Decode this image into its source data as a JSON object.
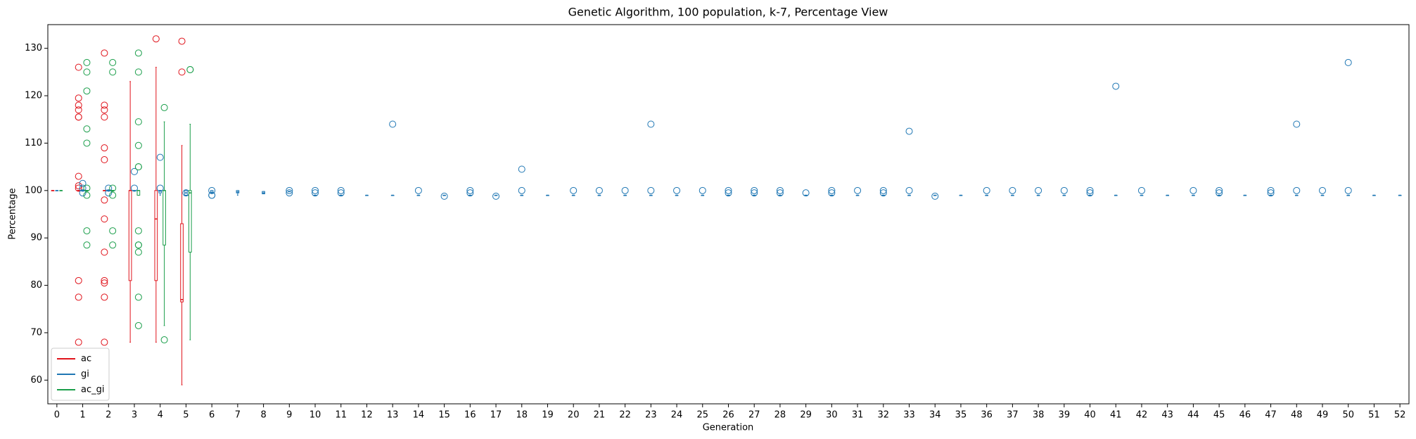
{
  "chart_data": {
    "type": "box",
    "title": "Genetic Algorithm, 100 population, k-7, Percentage View",
    "x_label": "Generation",
    "y_label": "Percentage",
    "categories": [
      "0",
      "1",
      "2",
      "3",
      "4",
      "5",
      "6",
      "7",
      "8",
      "9",
      "10",
      "11",
      "12",
      "13",
      "14",
      "15",
      "16",
      "17",
      "18",
      "19",
      "20",
      "21",
      "22",
      "23",
      "24",
      "25",
      "26",
      "27",
      "28",
      "29",
      "30",
      "31",
      "32",
      "33",
      "34",
      "35",
      "36",
      "37",
      "38",
      "39",
      "40",
      "41",
      "42",
      "43",
      "44",
      "45",
      "46",
      "47",
      "48",
      "49",
      "50",
      "51",
      "52"
    ],
    "ylim": [
      55,
      135
    ],
    "yticks": [
      60,
      70,
      80,
      90,
      100,
      110,
      120,
      130
    ],
    "legend": "lower left",
    "series": [
      {
        "name": "ac",
        "color": "#e0131b",
        "boxes": [
          {
            "box": [
              100,
              100,
              100,
              100,
              100
            ],
            "fliers": []
          },
          {
            "box": [
              100,
              100,
              100,
              100,
              100
            ],
            "fliers": [
              126,
              119.5,
              118,
              117,
              115.5,
              115.5,
              103,
              101,
              100.5,
              81,
              77.5,
              68
            ]
          },
          {
            "box": [
              100,
              100,
              100,
              100,
              100
            ],
            "fliers": [
              129,
              118,
              117,
              115.5,
              109,
              106.5,
              98,
              94,
              87,
              81,
              80.5,
              77.5,
              68
            ]
          },
          {
            "box": [
              68,
              81,
              100,
              100,
              123
            ],
            "fliers": []
          },
          {
            "box": [
              68,
              81,
              94,
              100,
              126
            ],
            "fliers": [
              132
            ]
          },
          {
            "box": [
              59,
              76.5,
              77,
              93,
              109.5
            ],
            "fliers": [
              131.5,
              125
            ]
          },
          null,
          null,
          null,
          null,
          null,
          null,
          null,
          null,
          null,
          null,
          null,
          null,
          null,
          null,
          null,
          null,
          null,
          null,
          null,
          null,
          null,
          null,
          null,
          null,
          null,
          null,
          null,
          null,
          null,
          null,
          null,
          null,
          null,
          null,
          null,
          null,
          null,
          null,
          null,
          null,
          null,
          null,
          null,
          null,
          null,
          null,
          null
        ]
      },
      {
        "name": "gi",
        "color": "#1f77b4",
        "boxes": [
          {
            "box": [
              100,
              100,
              100,
              100,
              100
            ],
            "fliers": []
          },
          {
            "box": [
              100,
              100,
              100,
              100,
              100
            ],
            "fliers": [
              101.5,
              100.5,
              99.5
            ]
          },
          {
            "box": [
              100,
              100,
              100,
              100,
              100
            ],
            "fliers": [
              100.5,
              99.5
            ]
          },
          {
            "box": [
              100,
              100,
              100,
              100,
              100
            ],
            "fliers": [
              104,
              100.5
            ]
          },
          {
            "box": [
              99,
              99.5,
              100,
              100,
              100
            ],
            "fliers": [
              107,
              100.5
            ]
          },
          {
            "box": [
              99,
              99,
              99.5,
              100,
              100
            ],
            "fliers": [
              99.5
            ]
          },
          {
            "box": [
              99.5,
              99.5,
              99.5,
              100,
              100
            ],
            "fliers": [
              100,
              99,
              99
            ]
          },
          {
            "box": [
              99,
              99.5,
              99.7,
              100,
              100
            ],
            "fliers": []
          },
          {
            "box": [
              99.3,
              99.3,
              99.5,
              99.8,
              99.8
            ],
            "fliers": []
          },
          {
            "box": [
              99.8,
              99.8,
              99.8,
              99.8,
              99.8
            ],
            "fliers": [
              100,
              99.5
            ]
          },
          {
            "box": [
              99,
              99,
              99,
              99,
              99
            ],
            "fliers": [
              100,
              99.5
            ]
          },
          {
            "box": [
              99,
              99,
              99,
              99,
              99
            ],
            "fliers": [
              100,
              99.5
            ]
          },
          {
            "box": [
              99,
              99,
              99,
              99,
              99
            ],
            "fliers": []
          },
          {
            "box": [
              99,
              99,
              99,
              99,
              99
            ],
            "fliers": [
              114
            ]
          },
          {
            "box": [
              99,
              99,
              99,
              99,
              99
            ],
            "fliers": [
              100
            ]
          },
          {
            "box": [
              99,
              99,
              99,
              99,
              99
            ],
            "fliers": [
              98.8
            ]
          },
          {
            "box": [
              99,
              99,
              99,
              99,
              99
            ],
            "fliers": [
              100,
              99.5
            ]
          },
          {
            "box": [
              99,
              99,
              99,
              99,
              99
            ],
            "fliers": [
              98.8
            ]
          },
          {
            "box": [
              99,
              99,
              99,
              99,
              99
            ],
            "fliers": [
              104.5,
              100
            ]
          },
          {
            "box": [
              99,
              99,
              99,
              99,
              99
            ],
            "fliers": []
          },
          {
            "box": [
              99,
              99,
              99,
              99,
              99
            ],
            "fliers": [
              100
            ]
          },
          {
            "box": [
              99,
              99,
              99,
              99,
              99
            ],
            "fliers": [
              100
            ]
          },
          {
            "box": [
              99,
              99,
              99,
              99,
              99
            ],
            "fliers": [
              100
            ]
          },
          {
            "box": [
              99,
              99,
              99,
              99,
              99
            ],
            "fliers": [
              114,
              100
            ]
          },
          {
            "box": [
              99,
              99,
              99,
              99,
              99
            ],
            "fliers": [
              100
            ]
          },
          {
            "box": [
              99,
              99,
              99,
              99,
              99
            ],
            "fliers": [
              100
            ]
          },
          {
            "box": [
              99,
              99,
              99,
              99,
              99
            ],
            "fliers": [
              100,
              99.5
            ]
          },
          {
            "box": [
              99,
              99,
              99,
              99,
              99
            ],
            "fliers": [
              100,
              99.5
            ]
          },
          {
            "box": [
              99,
              99,
              99,
              99,
              99
            ],
            "fliers": [
              100,
              99.5
            ]
          },
          {
            "box": [
              99,
              99,
              99,
              99,
              99
            ],
            "fliers": [
              99.5
            ]
          },
          {
            "box": [
              99,
              99,
              99,
              99,
              99
            ],
            "fliers": [
              100,
              99.5
            ]
          },
          {
            "box": [
              99,
              99,
              99,
              99,
              99
            ],
            "fliers": [
              100
            ]
          },
          {
            "box": [
              99,
              99,
              99,
              99,
              99
            ],
            "fliers": [
              100,
              99.5
            ]
          },
          {
            "box": [
              99,
              99,
              99,
              99,
              99
            ],
            "fliers": [
              112.5,
              100
            ]
          },
          {
            "box": [
              99,
              99,
              99,
              99,
              99
            ],
            "fliers": [
              98.8
            ]
          },
          {
            "box": [
              99,
              99,
              99,
              99,
              99
            ],
            "fliers": []
          },
          {
            "box": [
              99,
              99,
              99,
              99,
              99
            ],
            "fliers": [
              100
            ]
          },
          {
            "box": [
              99,
              99,
              99,
              99,
              99
            ],
            "fliers": [
              100
            ]
          },
          {
            "box": [
              99,
              99,
              99,
              99,
              99
            ],
            "fliers": [
              100
            ]
          },
          {
            "box": [
              99,
              99,
              99,
              99,
              99
            ],
            "fliers": [
              100
            ]
          },
          {
            "box": [
              99,
              99,
              99,
              99,
              99
            ],
            "fliers": [
              100,
              99.5
            ]
          },
          {
            "box": [
              99,
              99,
              99,
              99,
              99
            ],
            "fliers": [
              122
            ]
          },
          {
            "box": [
              99,
              99,
              99,
              99,
              99
            ],
            "fliers": [
              100
            ]
          },
          {
            "box": [
              99,
              99,
              99,
              99,
              99
            ],
            "fliers": []
          },
          {
            "box": [
              99,
              99,
              99,
              99,
              99
            ],
            "fliers": [
              100
            ]
          },
          {
            "box": [
              99,
              99,
              99,
              99,
              99
            ],
            "fliers": [
              100,
              99.5
            ]
          },
          {
            "box": [
              99,
              99,
              99,
              99,
              99
            ],
            "fliers": []
          },
          {
            "box": [
              99,
              99,
              99,
              99,
              99
            ],
            "fliers": [
              100,
              99.5
            ]
          },
          {
            "box": [
              99,
              99,
              99,
              99,
              99
            ],
            "fliers": [
              114,
              100
            ]
          },
          {
            "box": [
              99,
              99,
              99,
              99,
              99
            ],
            "fliers": [
              100
            ]
          },
          {
            "box": [
              99,
              99,
              99,
              99,
              99
            ],
            "fliers": [
              127,
              100
            ]
          },
          {
            "box": [
              99,
              99,
              99,
              99,
              99
            ],
            "fliers": []
          },
          {
            "box": [
              99,
              99,
              99,
              99,
              99
            ],
            "fliers": []
          }
        ]
      },
      {
        "name": "ac_gi",
        "color": "#1a9e4a",
        "boxes": [
          {
            "box": [
              100,
              100,
              100,
              100,
              100
            ],
            "fliers": []
          },
          {
            "box": [
              100,
              100,
              100,
              100,
              100
            ],
            "fliers": [
              127,
              125,
              121,
              113,
              110,
              100.5,
              99,
              91.5,
              88.5
            ]
          },
          {
            "box": [
              100,
              100,
              100,
              100,
              100
            ],
            "fliers": [
              127,
              125,
              100.5,
              99,
              91.5,
              88.5
            ]
          },
          {
            "box": [
              99,
              99,
              100,
              100,
              100
            ],
            "fliers": [
              129,
              125,
              114.5,
              109.5,
              105,
              105,
              91.5,
              88.5,
              88.5,
              87,
              77.5,
              71.5
            ]
          },
          {
            "box": [
              71.5,
              88.5,
              100,
              100,
              114.5
            ],
            "fliers": [
              117.5,
              68.5
            ]
          },
          {
            "box": [
              68.5,
              87,
              99.5,
              100,
              114
            ],
            "fliers": [
              125.5,
              125.5
            ]
          },
          null,
          null,
          null,
          null,
          null,
          null,
          null,
          null,
          null,
          null,
          null,
          null,
          null,
          null,
          null,
          null,
          null,
          null,
          null,
          null,
          null,
          null,
          null,
          null,
          null,
          null,
          null,
          null,
          null,
          null,
          null,
          null,
          null,
          null,
          null,
          null,
          null,
          null,
          null,
          null,
          null,
          null,
          null,
          null,
          null,
          null,
          null
        ]
      }
    ]
  }
}
